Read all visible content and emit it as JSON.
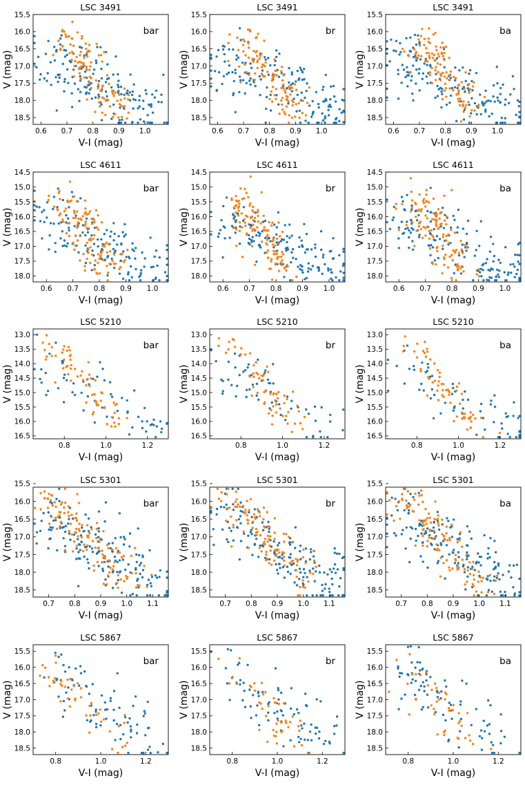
{
  "figure": {
    "marker_colors": {
      "all_stars": "#1f77b4",
      "selected_stars": "#ff7f0e"
    },
    "xlabel": "V-I (mag)",
    "ylabel": "V (mag)"
  },
  "chart_data": [
    {
      "type": "scatter",
      "cluster": "LSC 3491",
      "title": "LSC 3491",
      "xlim": [
        0.57,
        1.09
      ],
      "ylim": [
        18.7,
        15.5
      ],
      "xticks": [
        0.6,
        0.7,
        0.8,
        0.9,
        1.0
      ],
      "xtick_labels": [
        "0.6",
        "0.7",
        "0.8",
        "0.9",
        "1.0"
      ],
      "yticks": [
        15.5,
        16.0,
        16.5,
        17.0,
        17.5,
        18.0,
        18.5
      ],
      "ytick_labels": [
        "15.5",
        "16.0",
        "16.5",
        "17.0",
        "17.5",
        "18.0",
        "18.5"
      ],
      "panels": [
        {
          "label": "bar",
          "seed": 101
        },
        {
          "label": "br",
          "seed": 102
        },
        {
          "label": "ba",
          "seed": 103
        }
      ],
      "n_all": 170,
      "n_selected": 110,
      "all_stars_region": {
        "x_start": 0.6,
        "x_end": 1.07,
        "y_start": 16.8,
        "y_end": 18.4,
        "x_scatter": 0.05,
        "y_scatter": 0.45
      },
      "selected_stars_region": {
        "x_start": 0.69,
        "x_end": 0.9,
        "y_start": 16.0,
        "y_end": 18.4,
        "x_scatter": 0.04,
        "y_scatter": 0.2
      }
    },
    {
      "type": "scatter",
      "cluster": "LSC 4611",
      "title": "LSC 4611",
      "xlim": [
        0.55,
        1.06
      ],
      "ylim": [
        18.2,
        14.5
      ],
      "xticks": [
        0.6,
        0.7,
        0.8,
        0.9,
        1.0
      ],
      "xtick_labels": [
        "0.6",
        "0.7",
        "0.8",
        "0.9",
        "1.0"
      ],
      "yticks": [
        14.5,
        15.0,
        15.5,
        16.0,
        16.5,
        17.0,
        17.5,
        18.0
      ],
      "ytick_labels": [
        "14.5",
        "15.0",
        "15.5",
        "16.0",
        "16.5",
        "17.0",
        "17.5",
        "18.0"
      ],
      "panels": [
        {
          "label": "bar",
          "seed": 201
        },
        {
          "label": "br",
          "seed": 202
        },
        {
          "label": "ba",
          "seed": 203
        }
      ],
      "n_all": 160,
      "n_selected": 120,
      "all_stars_region": {
        "x_start": 0.58,
        "x_end": 1.04,
        "y_start": 15.9,
        "y_end": 18.0,
        "x_scatter": 0.05,
        "y_scatter": 0.45
      },
      "selected_stars_region": {
        "x_start": 0.65,
        "x_end": 0.85,
        "y_start": 15.3,
        "y_end": 18.0,
        "x_scatter": 0.04,
        "y_scatter": 0.3
      }
    },
    {
      "type": "scatter",
      "cluster": "LSC 5210",
      "title": "LSC 5210",
      "xlim": [
        0.65,
        1.3
      ],
      "ylim": [
        16.6,
        12.8
      ],
      "xticks": [
        0.8,
        1.0,
        1.2
      ],
      "xtick_labels": [
        "0.8",
        "1.0",
        "1.2"
      ],
      "yticks": [
        13.0,
        13.5,
        14.0,
        14.5,
        15.0,
        15.5,
        16.0,
        16.5
      ],
      "ytick_labels": [
        "13.0",
        "13.5",
        "14.0",
        "14.5",
        "15.0",
        "15.5",
        "16.0",
        "16.5"
      ],
      "panels": [
        {
          "label": "bar",
          "seed": 301
        },
        {
          "label": "br",
          "seed": 302
        },
        {
          "label": "ba",
          "seed": 303
        }
      ],
      "n_all": 65,
      "n_selected": 65,
      "all_stars_region": {
        "x_start": 0.68,
        "x_end": 1.27,
        "y_start": 13.9,
        "y_end": 16.4,
        "x_scatter": 0.05,
        "y_scatter": 0.45
      },
      "selected_stars_region": {
        "x_start": 0.74,
        "x_end": 1.1,
        "y_start": 13.2,
        "y_end": 16.4,
        "x_scatter": 0.04,
        "y_scatter": 0.2
      }
    },
    {
      "type": "scatter",
      "cluster": "LSC 5301",
      "title": "LSC 5301",
      "xlim": [
        0.64,
        1.16
      ],
      "ylim": [
        18.7,
        15.6
      ],
      "xticks": [
        0.7,
        0.8,
        0.9,
        1.0,
        1.1
      ],
      "xtick_labels": [
        "0.7",
        "0.8",
        "0.9",
        "1.0",
        "1.1"
      ],
      "yticks": [
        15.5,
        16.0,
        16.5,
        17.0,
        17.5,
        18.0,
        18.5
      ],
      "ytick_labels": [
        "15.5",
        "16.0",
        "16.5",
        "17.0",
        "17.5",
        "18.0",
        "18.5"
      ],
      "panels": [
        {
          "label": "bar",
          "seed": 401
        },
        {
          "label": "br",
          "seed": 402
        },
        {
          "label": "ba",
          "seed": 403
        }
      ],
      "n_all": 170,
      "n_selected": 120,
      "all_stars_region": {
        "x_start": 0.68,
        "x_end": 1.13,
        "y_start": 16.3,
        "y_end": 18.5,
        "x_scatter": 0.05,
        "y_scatter": 0.45
      },
      "selected_stars_region": {
        "x_start": 0.7,
        "x_end": 1.02,
        "y_start": 15.8,
        "y_end": 18.4,
        "x_scatter": 0.04,
        "y_scatter": 0.25
      }
    },
    {
      "type": "scatter",
      "cluster": "LSC 5867",
      "title": "LSC 5867",
      "xlim": [
        0.7,
        1.3
      ],
      "ylim": [
        18.7,
        15.3
      ],
      "xticks": [
        0.8,
        1.0,
        1.2
      ],
      "xtick_labels": [
        "0.8",
        "1.0",
        "1.2"
      ],
      "yticks": [
        15.5,
        16.0,
        16.5,
        17.0,
        17.5,
        18.0,
        18.5
      ],
      "ytick_labels": [
        "15.5",
        "16.0",
        "16.5",
        "17.0",
        "17.5",
        "18.0",
        "18.5"
      ],
      "panels": [
        {
          "label": "bar",
          "seed": 501
        },
        {
          "label": "br",
          "seed": 502
        },
        {
          "label": "ba",
          "seed": 503
        }
      ],
      "n_all": 85,
      "n_selected": 45,
      "all_stars_region": {
        "x_start": 0.76,
        "x_end": 1.25,
        "y_start": 16.0,
        "y_end": 18.4,
        "x_scatter": 0.05,
        "y_scatter": 0.45
      },
      "selected_stars_region": {
        "x_start": 0.77,
        "x_end": 1.1,
        "y_start": 16.0,
        "y_end": 18.4,
        "x_scatter": 0.04,
        "y_scatter": 0.3
      }
    }
  ]
}
